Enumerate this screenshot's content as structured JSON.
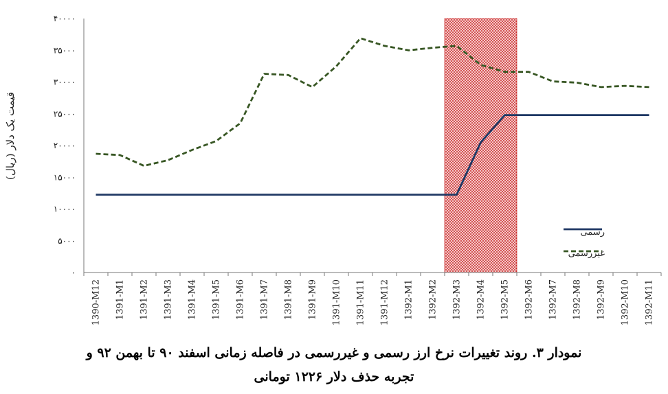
{
  "chart_data": {
    "type": "line",
    "categories": [
      "1390-M12",
      "1391-M1",
      "1391-M2",
      "1391-M3",
      "1391-M4",
      "1391-M5",
      "1391-M6",
      "1391-M7",
      "1391-M8",
      "1391-M9",
      "1391-M10",
      "1391-M11",
      "1391-M12",
      "1392-M1",
      "1392-M2",
      "1392-M3",
      "1392-M4",
      "1392-M5",
      "1392-M6",
      "1392-M7",
      "1392-M8",
      "1392-M9",
      "1392-M10",
      "1392-M11"
    ],
    "series": [
      {
        "name": "رسمی",
        "color": "#1f3864",
        "style": "solid",
        "values": [
          12260,
          12260,
          12260,
          12260,
          12260,
          12260,
          12260,
          12260,
          12260,
          12260,
          12260,
          12260,
          12260,
          12260,
          12260,
          12260,
          20500,
          24800,
          24800,
          24800,
          24800,
          24800,
          24800,
          24800
        ]
      },
      {
        "name": "غیررسمی",
        "color": "#375623",
        "style": "dashed",
        "values": [
          18700,
          18500,
          16800,
          17700,
          19300,
          20700,
          23500,
          31300,
          31100,
          29200,
          32500,
          36900,
          35700,
          35000,
          35400,
          35700,
          32700,
          31600,
          31600,
          30100,
          29900,
          29200,
          29400,
          29200
        ]
      }
    ],
    "ylabel": "قیمت یک دلار (ریال)",
    "xlabel": "",
    "ylim": [
      0,
      40000
    ],
    "yticks": [
      "۰",
      "۵۰۰۰",
      "۱۰۰۰۰",
      "۱۵۰۰۰",
      "۲۰۰۰۰",
      "۲۵۰۰۰",
      "۳۰۰۰۰",
      "۳۵۰۰۰",
      "۴۰۰۰۰"
    ],
    "shaded_region": {
      "from": "1392-M3",
      "to": "1392-M5",
      "color": "#c00000",
      "pattern": "dotted"
    },
    "legend": {
      "placement": "bottom-right",
      "items": [
        "رسمی",
        "غیررسمی"
      ]
    },
    "grid": false,
    "caption": [
      "نمودار ۳. روند تغییرات نرخ ارز رسمی و غیررسمی در فاصله زمانی اسفند ۹۰ تا بهمن ۹۲ و",
      "تجربه حذف دلار ۱۲۲۶ تومانی"
    ]
  }
}
